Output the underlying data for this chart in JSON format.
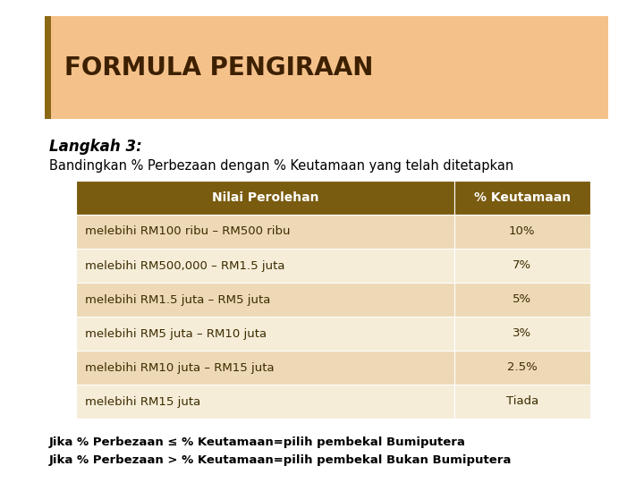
{
  "title": "FORMULA PENGIRAAN",
  "title_bg_color": "#F5C18A",
  "title_accent_color": "#7A5C10",
  "title_fontsize": 20,
  "subtitle": "Langkah 3:",
  "subtitle_fontsize": 12,
  "description": "Bandingkan % Perbezaan dengan % Keutamaan yang telah ditetapkan",
  "description_fontsize": 10.5,
  "table_header": [
    "Nilai Perolehan",
    "% Keutamaan"
  ],
  "table_header_bg": "#7A5C10",
  "table_header_color": "#FFFFFF",
  "table_row_bg_odd": "#EDD9B5",
  "table_row_bg_even": "#F5EDD8",
  "table_rows": [
    [
      "melebihi RM100 ribu – RM500 ribu",
      "10%"
    ],
    [
      "melebihi RM500,000 – RM1.5 juta",
      "7%"
    ],
    [
      "melebihi RM1.5 juta – RM5 juta",
      "5%"
    ],
    [
      "melebihi RM5 juta – RM10 juta",
      "3%"
    ],
    [
      "melebihi RM10 juta – RM15 juta",
      "2.5%"
    ],
    [
      "melebihi RM15 juta",
      "Tiada"
    ]
  ],
  "footer_line1": "Jika % Perbezaan ≤ % Keutamaan=pilih pembekal Bumiputera",
  "footer_line2": "Jika % Perbezaan > % Keutamaan=pilih pembekal Bukan Bumiputera",
  "footer_fontsize": 9.5,
  "bg_color": "#FFFFFF",
  "text_color": "#000000",
  "table_text_color": "#3D2B00",
  "table_header_text_color": "#FFFFFF",
  "accent_bar_color": "#8B6914",
  "title_text_color": "#3D2000"
}
